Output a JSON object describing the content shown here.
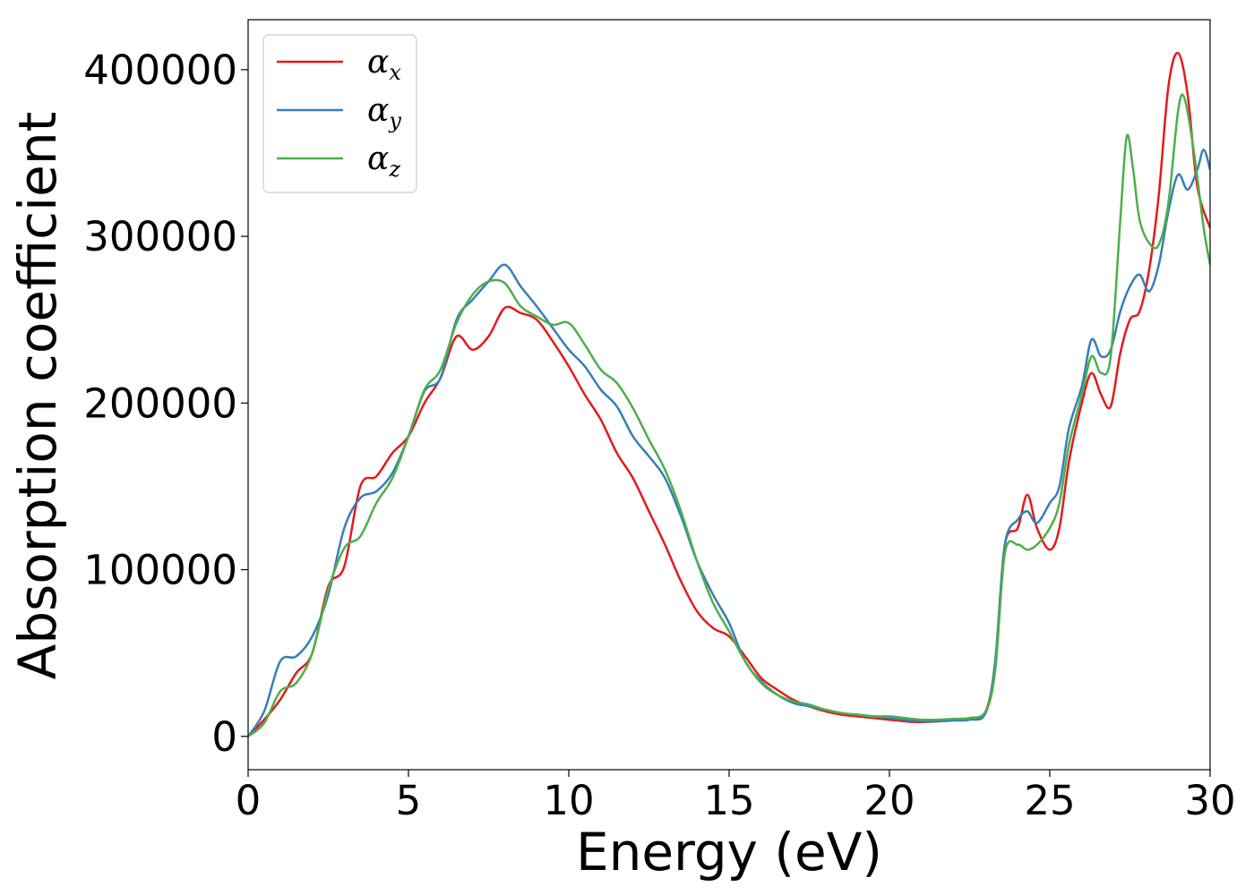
{
  "chart_data": {
    "type": "line",
    "title": "",
    "xlabel": "Energy (eV)",
    "ylabel": "Absorption coefficient",
    "xlim": [
      0,
      30
    ],
    "ylim": [
      -20000,
      430000
    ],
    "xticks": [
      0,
      5,
      10,
      15,
      20,
      25,
      30
    ],
    "yticks": [
      0,
      100000,
      200000,
      300000,
      400000
    ],
    "grid": false,
    "legend_position": "top-left",
    "series": [
      {
        "name": "α",
        "subscript": "x",
        "color": "#e41a1c",
        "x": [
          0,
          0.5,
          1.0,
          1.5,
          2.0,
          2.5,
          3.0,
          3.5,
          4.0,
          4.5,
          5.0,
          5.5,
          6.0,
          6.5,
          7.0,
          7.5,
          8.0,
          8.5,
          9.0,
          9.5,
          10.0,
          10.5,
          11.0,
          11.5,
          12.0,
          12.5,
          13.0,
          13.5,
          14.0,
          14.5,
          15.0,
          15.5,
          16.0,
          16.5,
          17.0,
          17.5,
          18.0,
          18.5,
          19.0,
          19.5,
          20.0,
          20.5,
          21.0,
          21.5,
          22.0,
          22.5,
          23.0,
          23.3,
          23.6,
          24.0,
          24.3,
          24.6,
          25.0,
          25.3,
          25.6,
          26.0,
          26.3,
          26.6,
          26.9,
          27.2,
          27.5,
          27.8,
          28.1,
          28.4,
          28.7,
          29.0,
          29.3,
          29.6,
          30.0
        ],
        "y": [
          0,
          10000,
          22000,
          38000,
          50000,
          90000,
          102000,
          150000,
          156000,
          170000,
          180000,
          200000,
          215000,
          240000,
          232000,
          240000,
          257000,
          254000,
          250000,
          237000,
          222000,
          205000,
          190000,
          170000,
          155000,
          135000,
          115000,
          93000,
          75000,
          65000,
          60000,
          48000,
          35000,
          28000,
          22000,
          18000,
          15000,
          13000,
          12000,
          11000,
          10000,
          9000,
          8500,
          9000,
          10000,
          11000,
          15000,
          45000,
          115000,
          125000,
          145000,
          125000,
          112000,
          125000,
          165000,
          200000,
          218000,
          205000,
          198000,
          230000,
          250000,
          255000,
          280000,
          325000,
          390000,
          410000,
          385000,
          330000,
          305000
        ]
      },
      {
        "name": "α",
        "subscript": "y",
        "color": "#377eb8",
        "x": [
          0,
          0.5,
          1.0,
          1.5,
          2.0,
          2.5,
          3.0,
          3.5,
          4.0,
          4.5,
          5.0,
          5.5,
          6.0,
          6.5,
          7.0,
          7.5,
          8.0,
          8.5,
          9.0,
          9.5,
          10.0,
          10.5,
          11.0,
          11.5,
          12.0,
          12.5,
          13.0,
          13.5,
          14.0,
          14.5,
          15.0,
          15.5,
          16.0,
          16.5,
          17.0,
          17.5,
          18.0,
          18.5,
          19.0,
          19.5,
          20.0,
          20.5,
          21.0,
          21.5,
          22.0,
          22.5,
          23.0,
          23.3,
          23.6,
          24.0,
          24.3,
          24.6,
          25.0,
          25.3,
          25.6,
          26.0,
          26.3,
          26.6,
          26.9,
          27.2,
          27.5,
          27.8,
          28.1,
          28.4,
          28.7,
          29.0,
          29.3,
          29.6,
          29.8,
          30.0
        ],
        "y": [
          0,
          15000,
          45000,
          48000,
          60000,
          85000,
          125000,
          143000,
          147000,
          158000,
          180000,
          207000,
          215000,
          250000,
          262000,
          273000,
          283000,
          270000,
          258000,
          245000,
          232000,
          222000,
          208000,
          198000,
          180000,
          168000,
          155000,
          132000,
          105000,
          85000,
          68000,
          45000,
          33000,
          25000,
          20000,
          18000,
          16000,
          14000,
          13000,
          12000,
          11000,
          10000,
          9000,
          9000,
          9500,
          10000,
          14000,
          45000,
          115000,
          130000,
          135000,
          128000,
          140000,
          150000,
          185000,
          210000,
          238000,
          228000,
          232000,
          255000,
          270000,
          277000,
          267000,
          283000,
          315000,
          337000,
          328000,
          340000,
          352000,
          340000
        ]
      },
      {
        "name": "α",
        "subscript": "z",
        "color": "#4daf4a",
        "x": [
          0,
          0.5,
          1.0,
          1.5,
          2.0,
          2.5,
          3.0,
          3.5,
          4.0,
          4.5,
          5.0,
          5.5,
          6.0,
          6.5,
          7.0,
          7.5,
          8.0,
          8.5,
          9.0,
          9.5,
          10.0,
          10.5,
          11.0,
          11.5,
          12.0,
          12.5,
          13.0,
          13.5,
          14.0,
          14.5,
          15.0,
          15.5,
          16.0,
          16.5,
          17.0,
          17.5,
          18.0,
          18.5,
          19.0,
          19.5,
          20.0,
          20.5,
          21.0,
          21.5,
          22.0,
          22.5,
          23.0,
          23.3,
          23.6,
          24.0,
          24.3,
          24.6,
          25.0,
          25.3,
          25.6,
          26.0,
          26.3,
          26.6,
          26.9,
          27.2,
          27.4,
          27.6,
          27.8,
          28.1,
          28.4,
          28.7,
          29.0,
          29.2,
          29.5,
          29.8,
          30.0
        ],
        "y": [
          0,
          8000,
          27000,
          32000,
          50000,
          88000,
          113000,
          120000,
          140000,
          155000,
          180000,
          208000,
          220000,
          248000,
          265000,
          273000,
          272000,
          258000,
          252000,
          247000,
          248000,
          235000,
          220000,
          212000,
          197000,
          178000,
          160000,
          135000,
          105000,
          80000,
          63000,
          45000,
          32000,
          25000,
          21000,
          19000,
          16000,
          14000,
          13000,
          12000,
          12000,
          11000,
          10000,
          10000,
          10500,
          11000,
          15000,
          40000,
          110000,
          115000,
          112000,
          115000,
          125000,
          140000,
          175000,
          205000,
          228000,
          218000,
          228000,
          310000,
          360000,
          340000,
          310000,
          296000,
          295000,
          320000,
          375000,
          383000,
          350000,
          305000,
          283000
        ]
      }
    ]
  }
}
